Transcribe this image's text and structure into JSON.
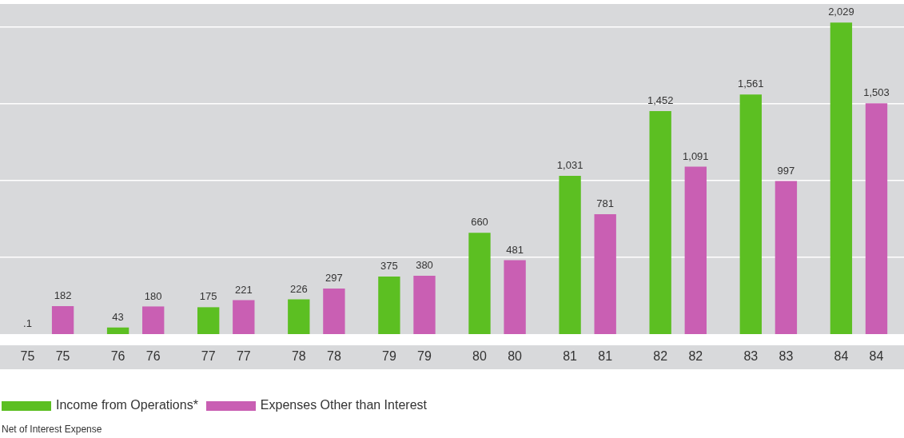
{
  "chart_data": {
    "type": "bar",
    "categories": [
      "75",
      "76",
      "77",
      "78",
      "79",
      "80",
      "81",
      "82",
      "83",
      "84"
    ],
    "series": [
      {
        "name": "Income from Operations*",
        "color": "#5cbf22",
        "values": [
          0.1,
          43,
          175,
          226,
          375,
          660,
          1031,
          1452,
          1561,
          2029
        ],
        "value_labels": [
          ".1",
          "43",
          "175",
          "226",
          "375",
          "660",
          "1,031",
          "1,452",
          "1,561",
          "2,029"
        ]
      },
      {
        "name": "Expenses Other than Interest",
        "color": "#c95fb3",
        "values": [
          182,
          180,
          221,
          297,
          380,
          481,
          781,
          1091,
          997,
          1503
        ],
        "value_labels": [
          "182",
          "180",
          "221",
          "297",
          "380",
          "481",
          "781",
          "1,091",
          "997",
          "1,503"
        ]
      }
    ],
    "ylim": [
      0,
      2150
    ],
    "yticks": [
      {
        "value": 500,
        "label": null
      },
      {
        "value": 1000,
        "label": null
      },
      {
        "value": 1500,
        "label": null
      },
      {
        "value": 2000,
        "label": null
      }
    ],
    "grid": "y",
    "tick_labels": "x",
    "legend": "bottom left",
    "annotations": [
      "Net of Interest Expense"
    ]
  }
}
